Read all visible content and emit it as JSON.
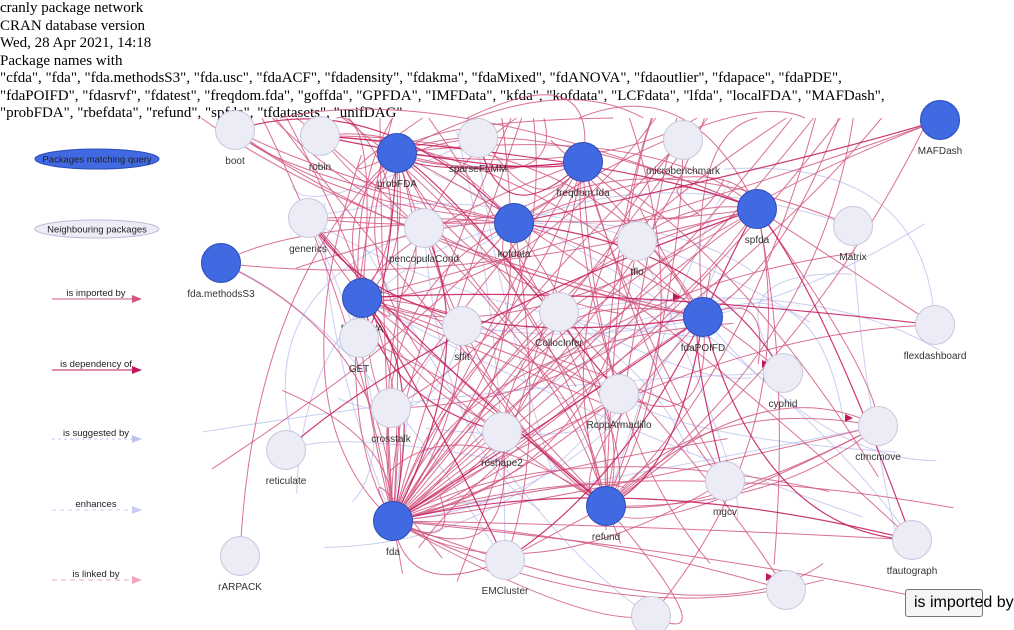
{
  "header": {
    "title": "cranly package network",
    "subtitle": "CRAN database version",
    "date": "Wed, 28 Apr 2021, 14:18",
    "query_label": "Package names with",
    "query_line1": "\"cfda\", \"fda\", \"fda.methodsS3\", \"fda.usc\", \"fdaACF\", \"fdadensity\", \"fdakma\", \"fdaMixed\", \"fdANOVA\", \"fdaoutlier\", \"fdapace\", \"fdaPDE\",",
    "query_line2": "\"fdaPOIFD\", \"fdasrvf\", \"fdatest\", \"freqdom.fda\", \"goffda\", \"GPFDA\", \"IMFData\", \"kfda\", \"kofdata\", \"LCFdata\", \"lfda\", \"localFDA\", \"MAFDash\",",
    "query_line3": "\"probFDA\", \"rbefdata\", \"refund\", \"spfda\", \"tfdatasets\", \"unifDAG\""
  },
  "legend": {
    "matching": "Packages matching query",
    "neighbouring": "Neighbouring packages",
    "imported": "is imported by",
    "dependency": "is dependency of",
    "suggested": "is suggested by",
    "enhances": "enhances",
    "linked": "is linked by"
  },
  "colors": {
    "matching_fill": "#4169E1",
    "matching_stroke": "#2B4DB8",
    "neighbour_fill": "#ECECF7",
    "neighbour_stroke": "#C8C8DE",
    "imports_edge": "#D2577F",
    "depends_edge": "#C2185B",
    "suggests_edge": "#BFC4EE",
    "enhances_edge": "#C8CCF0",
    "linked_edge": "#F4A6C0"
  },
  "nodes": [
    {
      "id": "boot",
      "label": "boot",
      "type": "neighbour"
    },
    {
      "id": "robin",
      "label": "robin",
      "type": "neighbour"
    },
    {
      "id": "probFDA",
      "label": "probFDA",
      "type": "match"
    },
    {
      "id": "sparseFLMM",
      "label": "sparseFLMM",
      "type": "neighbour"
    },
    {
      "id": "freqdom.fda",
      "label": "freqdom.fda",
      "type": "match"
    },
    {
      "id": "microbenchmark",
      "label": "microbenchmark",
      "type": "neighbour"
    },
    {
      "id": "MAFDash",
      "label": "MAFDash",
      "type": "match"
    },
    {
      "id": "generics",
      "label": "generics",
      "type": "neighbour"
    },
    {
      "id": "pencopulaCond",
      "label": "pencopulaCond",
      "type": "neighbour"
    },
    {
      "id": "kofdata",
      "label": "kofdata",
      "type": "match"
    },
    {
      "id": "tflo",
      "label": "tflo",
      "type": "neighbour"
    },
    {
      "id": "spfda",
      "label": "spfda",
      "type": "match"
    },
    {
      "id": "Matrix",
      "label": "Matrix",
      "type": "neighbour"
    },
    {
      "id": "fda.methodsS3",
      "label": "fda.methodsS3",
      "type": "match"
    },
    {
      "id": "fdANOVA",
      "label": "fdANOVA",
      "type": "match"
    },
    {
      "id": "GET",
      "label": "GET",
      "type": "neighbour"
    },
    {
      "id": "sffit",
      "label": "sffit",
      "type": "neighbour"
    },
    {
      "id": "CollocInfer",
      "label": "CollocInfer",
      "type": "neighbour"
    },
    {
      "id": "fdaPOIFD",
      "label": "fdaPOIFD",
      "type": "match"
    },
    {
      "id": "flexdashboard",
      "label": "flexdashboard",
      "type": "neighbour"
    },
    {
      "id": "cyphid",
      "label": "cyphid",
      "type": "neighbour"
    },
    {
      "id": "crosstalk",
      "label": "crosstalk",
      "type": "neighbour"
    },
    {
      "id": "RcppArmadillo",
      "label": "RcppArmadillo",
      "type": "neighbour"
    },
    {
      "id": "reticulate",
      "label": "reticulate",
      "type": "neighbour"
    },
    {
      "id": "reshape2",
      "label": "reshape2",
      "type": "neighbour"
    },
    {
      "id": "ctmcmove",
      "label": "ctmcmove",
      "type": "neighbour"
    },
    {
      "id": "mgcv",
      "label": "mgcv",
      "type": "neighbour"
    },
    {
      "id": "fda",
      "label": "fda",
      "type": "match"
    },
    {
      "id": "refund",
      "label": "refund",
      "type": "match"
    },
    {
      "id": "rARPACK",
      "label": "rARPACK",
      "type": "neighbour"
    },
    {
      "id": "EMCluster",
      "label": "EMCluster",
      "type": "neighbour"
    },
    {
      "id": "tfautograph",
      "label": "tfautograph",
      "type": "neighbour"
    },
    {
      "id": "misc1",
      "label": "",
      "type": "neighbour"
    },
    {
      "id": "misc2",
      "label": "",
      "type": "neighbour"
    }
  ],
  "tooltip": {
    "text": "is imported by"
  }
}
